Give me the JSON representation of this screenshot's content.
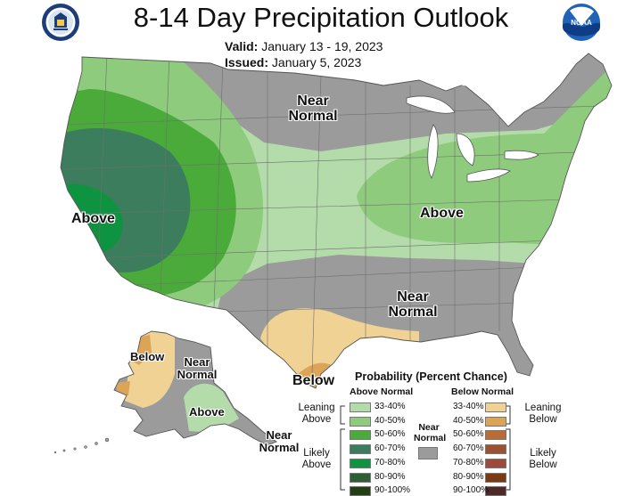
{
  "title": "8-14 Day Precipitation Outlook",
  "valid_label": "Valid:",
  "valid_value": "January 13 - 19, 2023",
  "issued_label": "Issued:",
  "issued_value": "January 5, 2023",
  "logos": {
    "left": "doc-seal",
    "right": "noaa-logo",
    "noaa_text": "NOAA"
  },
  "map_labels": {
    "above_west": "Above",
    "above_east": "Above",
    "near_normal_north_1": "Near",
    "near_normal_north_2": "Normal",
    "near_normal_south_1": "Near",
    "near_normal_south_2": "Normal",
    "below_texas": "Below",
    "ak_below": "Below",
    "ak_near_1": "Near",
    "ak_near_2": "Normal",
    "ak_above": "Above",
    "ak_near_sw_1": "Near",
    "ak_near_sw_2": "Normal"
  },
  "colors": {
    "above_33_40": "#b4dcaa",
    "above_40_50": "#8ecb7c",
    "above_50_60": "#4aab3a",
    "above_60_70": "#3b7d5c",
    "above_70_80": "#0e9440",
    "above_80_90": "#2e5e35",
    "above_90_100": "#233d14",
    "near_normal": "#9b9b9b",
    "below_33_40": "#f0d394",
    "below_40_50": "#dca457",
    "below_50_60": "#bb6b34",
    "below_60_70": "#9c5231",
    "below_70_80": "#9c4a3c",
    "below_80_90": "#7a3a12",
    "below_90_100": "#4e2a26",
    "background": "#ffffff"
  },
  "legend": {
    "title": "Probability (Percent Chance)",
    "above_header": "Above Normal",
    "below_header": "Below Normal",
    "near_header_1": "Near",
    "near_header_2": "Normal",
    "leaning_above_1": "Leaning",
    "leaning_above_2": "Above",
    "likely_above_1": "Likely",
    "likely_above_2": "Above",
    "leaning_below_1": "Leaning",
    "leaning_below_2": "Below",
    "likely_below_1": "Likely",
    "likely_below_2": "Below",
    "above_rows": [
      "33-40%",
      "40-50%",
      "50-60%",
      "60-70%",
      "70-80%",
      "80-90%",
      "90-100%"
    ],
    "below_rows": [
      "33-40%",
      "40-50%",
      "50-60%",
      "60-70%",
      "70-80%",
      "80-90%",
      "90-100%"
    ]
  }
}
